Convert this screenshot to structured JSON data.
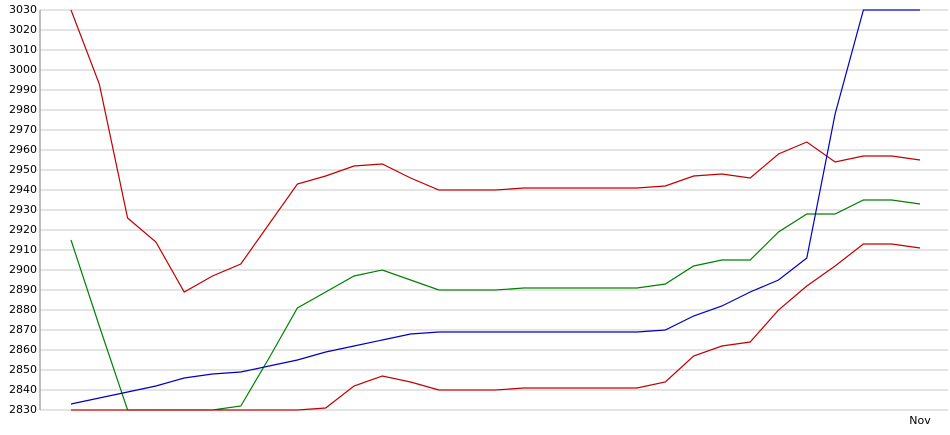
{
  "chart_data": {
    "type": "line",
    "categories": [
      null,
      null,
      null,
      null,
      null,
      null,
      null,
      null,
      null,
      null,
      null,
      null,
      null,
      null,
      null,
      null,
      null,
      null,
      null,
      null,
      null,
      null,
      null,
      null,
      null,
      null,
      null,
      null,
      null,
      null,
      "Nov"
    ],
    "series": [
      {
        "color": "#c00000",
        "values": [
          3030,
          2993,
          2926,
          2914,
          2889,
          2897,
          2903,
          2923,
          2943,
          2947,
          2952,
          2953,
          2946,
          2940,
          2940,
          2940,
          2941,
          2941,
          2941,
          2941,
          2941,
          2942,
          2947,
          2948,
          2946,
          2958,
          2964,
          2954,
          2957,
          2957,
          2955
        ]
      },
      {
        "color": "#008000",
        "values": [
          2915,
          2872,
          2830,
          2830,
          2830,
          2830,
          2832,
          2856,
          2881,
          2889,
          2897,
          2900,
          2895,
          2890,
          2890,
          2890,
          2891,
          2891,
          2891,
          2891,
          2891,
          2893,
          2902,
          2905,
          2905,
          2919,
          2928,
          2928,
          2935,
          2935,
          2933
        ]
      },
      {
        "color": "#0000c0",
        "values": [
          2833,
          2836,
          2839,
          2842,
          2846,
          2848,
          2849,
          2852,
          2855,
          2859,
          2862,
          2865,
          2868,
          2869,
          2869,
          2869,
          2869,
          2869,
          2869,
          2869,
          2869,
          2870,
          2877,
          2882,
          2889,
          2895,
          2906,
          2978,
          3030,
          3030,
          3030
        ]
      },
      {
        "color": "#c00000",
        "values": [
          2830,
          2830,
          2830,
          2830,
          2830,
          2830,
          2830,
          2830,
          2830,
          2831,
          2842,
          2847,
          2844,
          2840,
          2840,
          2840,
          2841,
          2841,
          2841,
          2841,
          2841,
          2844,
          2857,
          2862,
          2864,
          2880,
          2892,
          2902,
          2913,
          2913,
          2911
        ]
      }
    ],
    "ylim": [
      2830,
      3030
    ],
    "yticks": [
      2830,
      2840,
      2850,
      2860,
      2870,
      2880,
      2890,
      2900,
      2910,
      2920,
      2930,
      2940,
      2950,
      2960,
      2970,
      2980,
      2990,
      3000,
      3010,
      3020,
      3030
    ],
    "grid": true
  }
}
